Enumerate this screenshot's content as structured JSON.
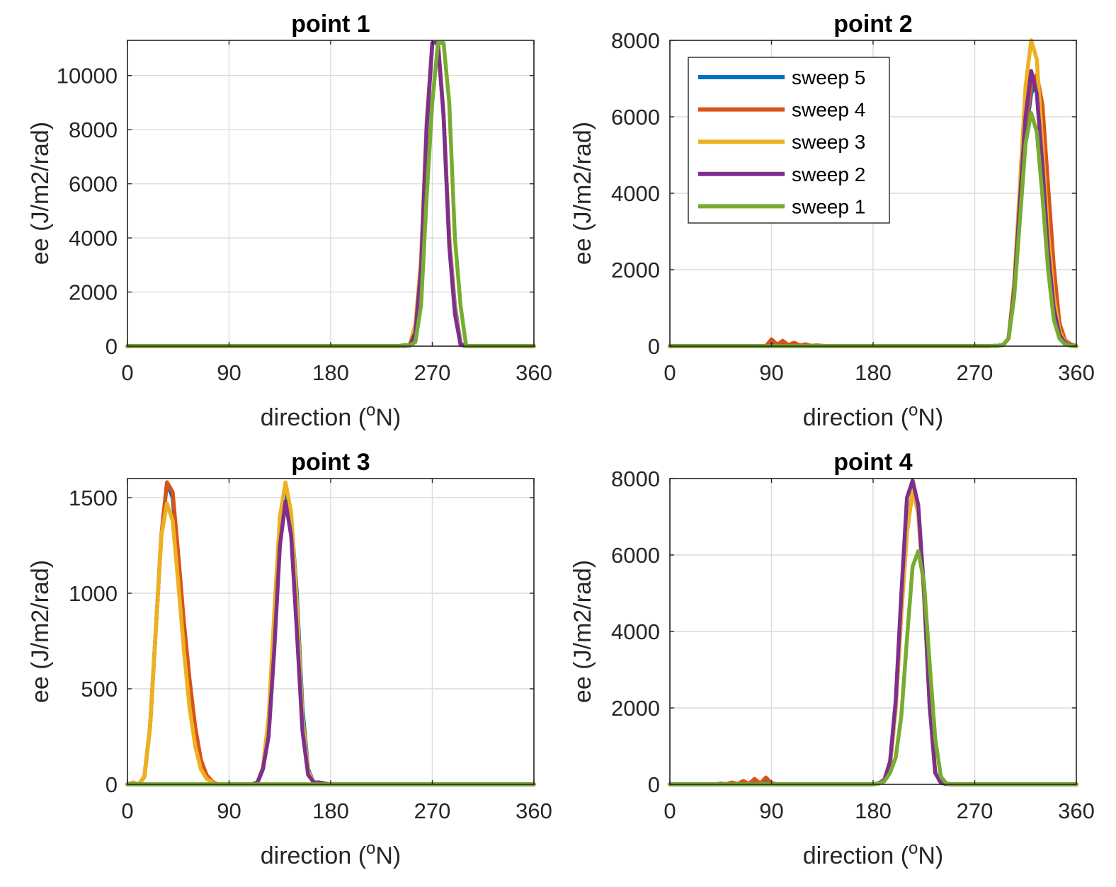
{
  "colors": {
    "sweep 5": "#0072BD",
    "sweep 4": "#D95319",
    "sweep 3": "#EDB120",
    "sweep 2": "#7E2F8E",
    "sweep 1": "#77AC30"
  },
  "chart_data": [
    {
      "type": "line",
      "title": "point 1",
      "xlabel": "direction (oN)",
      "ylabel": "ee (J/m2/rad)",
      "xlim": [
        0,
        360
      ],
      "ylim": [
        0,
        11300
      ],
      "xticks": [
        0,
        90,
        180,
        270,
        360
      ],
      "yticks": [
        0,
        2000,
        4000,
        6000,
        8000,
        10000
      ],
      "grid": true,
      "series": [
        {
          "name": "sweep 5",
          "x": [
            0,
            240,
            250,
            255,
            260,
            265,
            270,
            275,
            280,
            285,
            290,
            295,
            300,
            310,
            360
          ],
          "y": [
            0,
            0,
            30,
            600,
            3000,
            8000,
            11200,
            11200,
            8500,
            4000,
            1500,
            100,
            0,
            0,
            0
          ]
        },
        {
          "name": "sweep 4",
          "x": [
            0,
            240,
            250,
            255,
            260,
            265,
            270,
            275,
            280,
            285,
            290,
            295,
            300,
            310,
            360
          ],
          "y": [
            0,
            0,
            40,
            700,
            3100,
            8200,
            11200,
            11200,
            8600,
            4000,
            1400,
            80,
            0,
            0,
            0
          ]
        },
        {
          "name": "sweep 3",
          "x": [
            0,
            240,
            250,
            255,
            260,
            265,
            270,
            275,
            280,
            285,
            290,
            295,
            300,
            310,
            360
          ],
          "y": [
            0,
            0,
            50,
            800,
            3200,
            8300,
            11200,
            11200,
            8600,
            3900,
            1300,
            60,
            0,
            0,
            0
          ]
        },
        {
          "name": "sweep 2",
          "x": [
            0,
            240,
            250,
            255,
            260,
            265,
            270,
            275,
            280,
            285,
            290,
            295,
            300,
            310,
            360
          ],
          "y": [
            0,
            0,
            20,
            500,
            2900,
            8100,
            11200,
            11200,
            8500,
            3700,
            1200,
            50,
            0,
            0,
            0
          ]
        },
        {
          "name": "sweep 1",
          "x": [
            0,
            240,
            245,
            250,
            255,
            260,
            265,
            270,
            275,
            280,
            285,
            290,
            295,
            300,
            310,
            360
          ],
          "y": [
            0,
            0,
            40,
            30,
            150,
            1500,
            5500,
            9000,
            11200,
            11200,
            9000,
            4000,
            1500,
            0,
            0,
            0
          ]
        }
      ]
    },
    {
      "type": "line",
      "title": "point 2",
      "xlabel": "direction (oN)",
      "ylabel": "ee (J/m2/rad)",
      "xlim": [
        0,
        360
      ],
      "ylim": [
        0,
        8000
      ],
      "xticks": [
        0,
        90,
        180,
        270,
        360
      ],
      "yticks": [
        0,
        2000,
        4000,
        6000,
        8000
      ],
      "grid": true,
      "legend": {
        "location": "top-left",
        "entries": [
          "sweep 5",
          "sweep 4",
          "sweep 3",
          "sweep 2",
          "sweep 1"
        ]
      },
      "series": [
        {
          "name": "sweep 5",
          "x": [
            0,
            85,
            90,
            95,
            100,
            105,
            110,
            115,
            120,
            125,
            130,
            140,
            280,
            290,
            295,
            300,
            305,
            310,
            315,
            320,
            325,
            330,
            335,
            340,
            345,
            350,
            355,
            360
          ],
          "y": [
            0,
            0,
            80,
            40,
            70,
            30,
            50,
            20,
            30,
            10,
            10,
            0,
            0,
            10,
            30,
            200,
            1500,
            3500,
            5500,
            6600,
            7000,
            6100,
            4000,
            2000,
            600,
            150,
            50,
            0
          ]
        },
        {
          "name": "sweep 4",
          "x": [
            0,
            85,
            90,
            95,
            100,
            105,
            110,
            115,
            120,
            125,
            130,
            140,
            280,
            290,
            295,
            300,
            305,
            310,
            315,
            320,
            325,
            330,
            335,
            340,
            345,
            350,
            355,
            360
          ],
          "y": [
            0,
            0,
            180,
            40,
            140,
            30,
            90,
            20,
            50,
            10,
            20,
            0,
            0,
            10,
            30,
            200,
            1500,
            3600,
            5700,
            6800,
            7100,
            6300,
            4200,
            2100,
            600,
            150,
            50,
            0
          ]
        },
        {
          "name": "sweep 3",
          "x": [
            0,
            280,
            290,
            295,
            300,
            305,
            310,
            315,
            320,
            325,
            330,
            335,
            340,
            345,
            350,
            355,
            360
          ],
          "y": [
            0,
            0,
            10,
            30,
            200,
            1700,
            4200,
            6800,
            8000,
            7500,
            5200,
            3000,
            1300,
            400,
            100,
            30,
            0
          ]
        },
        {
          "name": "sweep 2",
          "x": [
            0,
            280,
            290,
            295,
            300,
            305,
            310,
            315,
            320,
            325,
            330,
            335,
            340,
            345,
            350,
            355,
            360
          ],
          "y": [
            0,
            0,
            10,
            30,
            200,
            1500,
            3800,
            6000,
            7200,
            6600,
            4700,
            2500,
            1000,
            300,
            80,
            20,
            0
          ]
        },
        {
          "name": "sweep 1",
          "x": [
            0,
            280,
            290,
            295,
            300,
            305,
            310,
            315,
            320,
            325,
            330,
            335,
            340,
            345,
            350,
            355,
            360
          ],
          "y": [
            0,
            0,
            10,
            30,
            200,
            1300,
            3300,
            5300,
            6100,
            5600,
            3900,
            2000,
            700,
            200,
            50,
            10,
            0
          ]
        }
      ]
    },
    {
      "type": "line",
      "title": "point 3",
      "xlabel": "direction (oN)",
      "ylabel": "ee (J/m2/rad)",
      "xlim": [
        0,
        360
      ],
      "ylim": [
        0,
        1600
      ],
      "xticks": [
        0,
        90,
        180,
        270,
        360
      ],
      "yticks": [
        0,
        500,
        1000,
        1500
      ],
      "grid": true,
      "series": [
        {
          "name": "sweep 5",
          "x": [
            0,
            5,
            10,
            15,
            20,
            25,
            30,
            35,
            40,
            45,
            50,
            55,
            60,
            65,
            70,
            75,
            80,
            90,
            100,
            110,
            115,
            120,
            125,
            130,
            135,
            140,
            145,
            150,
            155,
            160,
            165,
            170,
            175,
            180,
            200,
            360
          ],
          "y": [
            0,
            10,
            0,
            40,
            300,
            800,
            1300,
            1580,
            1500,
            1150,
            800,
            500,
            250,
            100,
            40,
            10,
            0,
            0,
            0,
            0,
            5,
            80,
            300,
            800,
            1300,
            1520,
            1400,
            1000,
            400,
            80,
            10,
            5,
            0,
            0,
            0,
            0
          ]
        },
        {
          "name": "sweep 4",
          "x": [
            0,
            5,
            10,
            15,
            20,
            25,
            30,
            35,
            40,
            45,
            50,
            55,
            60,
            65,
            70,
            75,
            80,
            90,
            360
          ],
          "y": [
            0,
            10,
            0,
            40,
            300,
            800,
            1300,
            1580,
            1530,
            1200,
            850,
            550,
            300,
            130,
            50,
            15,
            0,
            0,
            0
          ]
        },
        {
          "name": "sweep 3",
          "x": [
            0,
            5,
            10,
            15,
            20,
            25,
            30,
            35,
            40,
            45,
            50,
            55,
            60,
            65,
            70,
            75,
            80,
            90,
            100,
            110,
            115,
            120,
            125,
            130,
            135,
            140,
            145,
            150,
            155,
            160,
            165,
            170,
            175,
            180,
            200,
            360
          ],
          "y": [
            0,
            10,
            0,
            40,
            300,
            800,
            1300,
            1470,
            1380,
            1050,
            700,
            400,
            200,
            80,
            30,
            10,
            0,
            0,
            0,
            0,
            5,
            90,
            350,
            900,
            1400,
            1580,
            1420,
            950,
            350,
            70,
            10,
            5,
            0,
            0,
            0,
            0
          ]
        },
        {
          "name": "sweep 2",
          "x": [
            0,
            100,
            110,
            115,
            120,
            125,
            130,
            135,
            140,
            145,
            150,
            155,
            160,
            165,
            170,
            175,
            180,
            200,
            360
          ],
          "y": [
            0,
            0,
            0,
            10,
            80,
            250,
            700,
            1250,
            1480,
            1300,
            800,
            280,
            50,
            10,
            10,
            5,
            0,
            0,
            0
          ]
        },
        {
          "name": "sweep 1",
          "x": [
            0,
            360
          ],
          "y": [
            0,
            0
          ]
        }
      ]
    },
    {
      "type": "line",
      "title": "point 4",
      "xlabel": "direction (oN)",
      "ylabel": "ee (J/m2/rad)",
      "xlim": [
        0,
        360
      ],
      "ylim": [
        0,
        8000
      ],
      "xticks": [
        0,
        90,
        180,
        270,
        360
      ],
      "yticks": [
        0,
        2000,
        4000,
        6000,
        8000
      ],
      "grid": true,
      "series": [
        {
          "name": "sweep 5",
          "x": [
            0,
            40,
            45,
            50,
            55,
            60,
            65,
            70,
            75,
            80,
            85,
            90,
            95,
            180,
            185,
            190,
            195,
            200,
            205,
            210,
            215,
            220,
            225,
            230,
            235,
            240,
            245,
            250,
            360
          ],
          "y": [
            0,
            0,
            20,
            5,
            40,
            10,
            60,
            15,
            100,
            20,
            130,
            30,
            0,
            0,
            30,
            100,
            500,
            2000,
            4500,
            6600,
            7700,
            7100,
            5000,
            2100,
            300,
            40,
            10,
            0,
            0
          ]
        },
        {
          "name": "sweep 4",
          "x": [
            0,
            40,
            45,
            50,
            55,
            60,
            65,
            70,
            75,
            80,
            85,
            90,
            95,
            180,
            185,
            190,
            195,
            200,
            205,
            210,
            215,
            220,
            225,
            230,
            235,
            240,
            245,
            250,
            360
          ],
          "y": [
            0,
            0,
            20,
            5,
            50,
            10,
            90,
            15,
            140,
            20,
            180,
            30,
            0,
            0,
            30,
            100,
            500,
            2000,
            4500,
            6600,
            7700,
            7100,
            5000,
            2100,
            300,
            40,
            10,
            0,
            0
          ]
        },
        {
          "name": "sweep 3",
          "x": [
            0,
            180,
            185,
            190,
            195,
            200,
            205,
            210,
            215,
            220,
            225,
            230,
            235,
            240,
            245,
            250,
            360
          ],
          "y": [
            0,
            0,
            30,
            100,
            500,
            2000,
            4500,
            6600,
            7700,
            7100,
            5000,
            2100,
            300,
            40,
            10,
            0,
            0
          ]
        },
        {
          "name": "sweep 2",
          "x": [
            0,
            180,
            185,
            190,
            195,
            200,
            205,
            210,
            215,
            220,
            225,
            230,
            235,
            240,
            245,
            250,
            360
          ],
          "y": [
            0,
            0,
            30,
            120,
            600,
            2200,
            5000,
            7500,
            7950,
            7300,
            5100,
            2100,
            300,
            40,
            10,
            0,
            0
          ]
        },
        {
          "name": "sweep 1",
          "x": [
            0,
            180,
            185,
            190,
            195,
            200,
            205,
            210,
            215,
            220,
            225,
            230,
            235,
            240,
            245,
            250,
            360
          ],
          "y": [
            0,
            0,
            20,
            80,
            300,
            700,
            1800,
            3800,
            5700,
            6100,
            5300,
            3200,
            1200,
            200,
            20,
            0,
            0
          ]
        }
      ]
    }
  ]
}
